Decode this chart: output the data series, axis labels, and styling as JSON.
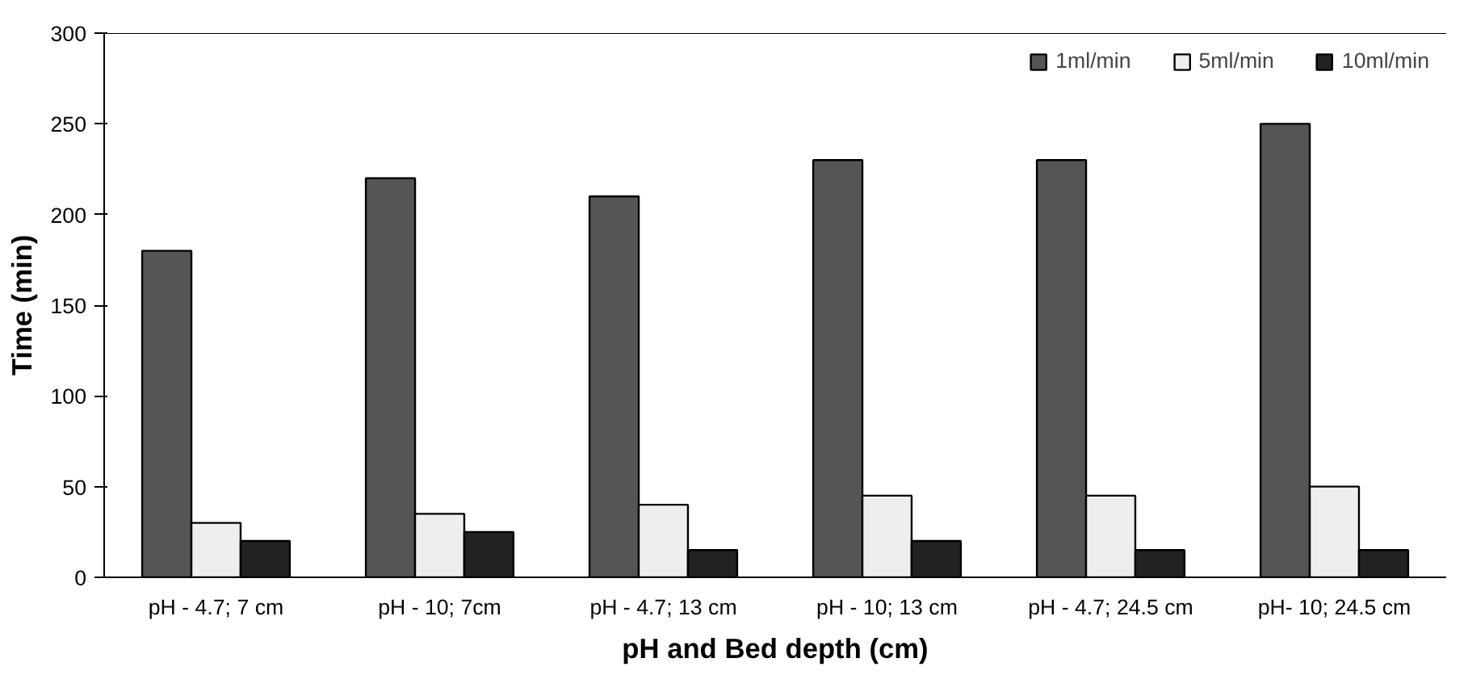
{
  "chart_data": {
    "type": "bar",
    "xlabel": "pH and Bed depth (cm)",
    "ylabel": "Time (min)",
    "categories": [
      "pH - 4.7; 7 cm",
      "pH - 10; 7cm",
      "pH - 4.7; 13 cm",
      "pH - 10; 13 cm",
      "pH - 4.7; 24.5 cm",
      "pH- 10; 24.5 cm"
    ],
    "series": [
      {
        "name": "1ml/min",
        "color": "#555555",
        "values": [
          180,
          220,
          210,
          230,
          230,
          250
        ]
      },
      {
        "name": "5ml/min",
        "color": "#eeeeee",
        "values": [
          30,
          35,
          40,
          45,
          45,
          50
        ]
      },
      {
        "name": "10ml/min",
        "color": "#222222",
        "values": [
          20,
          25,
          15,
          20,
          15,
          15
        ]
      }
    ],
    "ylim": [
      0,
      300
    ],
    "yticks": [
      0,
      50,
      100,
      150,
      200,
      250,
      300
    ],
    "grid": false,
    "legend": "top right"
  }
}
